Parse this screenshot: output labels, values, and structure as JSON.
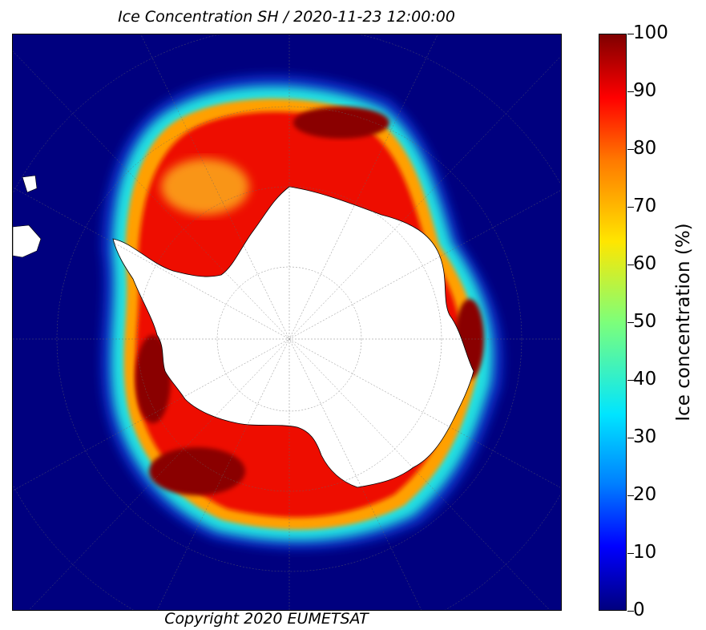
{
  "title": "Ice Concentration SH / 2020-11-23 12:00:00",
  "copyright": "Copyright 2020 EUMETSAT",
  "colorbar": {
    "label": "Ice concentration (%)",
    "ticks": [
      "0",
      "10",
      "20",
      "30",
      "40",
      "50",
      "60",
      "70",
      "80",
      "90",
      "100"
    ]
  },
  "colors": {
    "ocean": "#00007f",
    "ice_high": "#7f0000",
    "ice_mid": "#ff0000",
    "ice_low": "#ffa000",
    "ice_edge": "#00e5ff",
    "land": "#ffffff"
  }
}
